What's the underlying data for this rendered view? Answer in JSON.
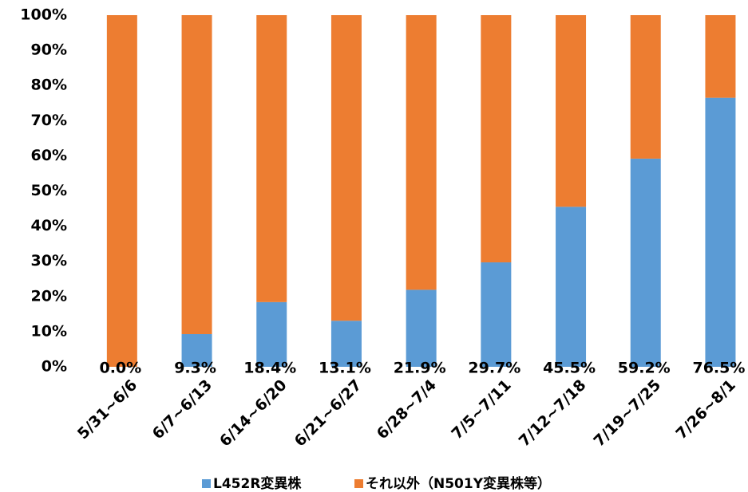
{
  "chart_data": {
    "type": "stacked_bar",
    "categories": [
      "5/31~6/6",
      "6/7~6/13",
      "6/14~6/20",
      "6/21~6/27",
      "6/28~7/4",
      "7/5~7/11",
      "7/12~7/18",
      "7/19~7/25",
      "7/26~8/1"
    ],
    "series": [
      {
        "name": "L452R変異株",
        "color": "#5b9bd5",
        "values": [
          0.0,
          9.3,
          18.4,
          13.1,
          21.9,
          29.7,
          45.5,
          59.2,
          76.5
        ],
        "value_labels": [
          "0.0%",
          "9.3%",
          "18.4%",
          "13.1%",
          "21.9%",
          "29.7%",
          "45.5%",
          "59.2%",
          "76.5%"
        ]
      },
      {
        "name": "それ以外（N501Y変異株等）",
        "color": "#ed7d31",
        "values": [
          100.0,
          90.7,
          81.6,
          86.9,
          78.1,
          70.3,
          54.5,
          40.8,
          23.5
        ]
      }
    ],
    "ylim": [
      0,
      100
    ],
    "yticks": [
      {
        "value": 0,
        "label": "0%"
      },
      {
        "value": 10,
        "label": "10%"
      },
      {
        "value": 20,
        "label": "20%"
      },
      {
        "value": 30,
        "label": "30%"
      },
      {
        "value": 40,
        "label": "40%"
      },
      {
        "value": 50,
        "label": "50%"
      },
      {
        "value": 60,
        "label": "60%"
      },
      {
        "value": 70,
        "label": "70%"
      },
      {
        "value": 80,
        "label": "80%"
      },
      {
        "value": 90,
        "label": "90%"
      },
      {
        "value": 100,
        "label": "100%"
      }
    ],
    "legend": "bottom"
  }
}
